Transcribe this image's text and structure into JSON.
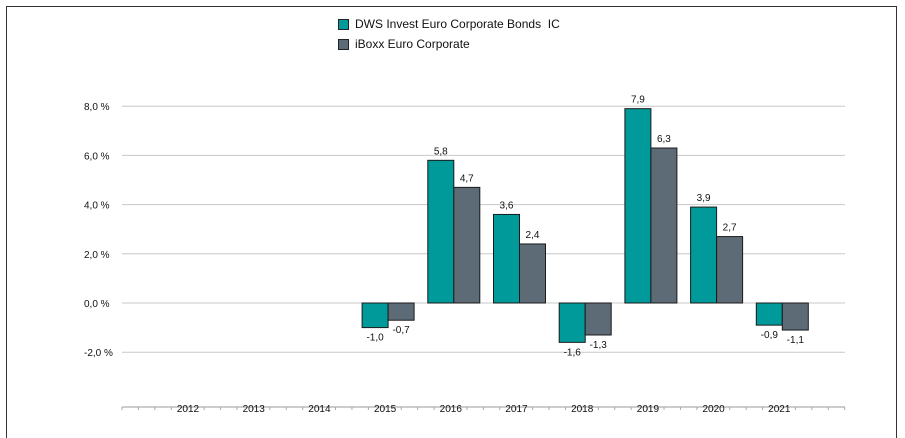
{
  "chart_data": {
    "type": "bar",
    "title": "",
    "xlabel": "",
    "ylabel": "",
    "categories": [
      "2012",
      "2013",
      "2014",
      "2015",
      "2016",
      "2017",
      "2018",
      "2019",
      "2020",
      "2021"
    ],
    "series": [
      {
        "name": "DWS Invest Euro Corporate Bonds  IC",
        "color": "#009a9a",
        "values": [
          null,
          null,
          null,
          -1.0,
          5.8,
          3.6,
          -1.6,
          7.9,
          3.9,
          -0.9
        ],
        "labels": [
          "",
          "",
          "",
          "-1,0",
          "5,8",
          "3,6",
          "-1,6",
          "7,9",
          "3,9",
          "-0,9"
        ]
      },
      {
        "name": "iBoxx Euro Corporate",
        "color": "#5d6b77",
        "values": [
          null,
          null,
          null,
          -0.7,
          4.7,
          2.4,
          -1.3,
          6.3,
          2.7,
          -1.1
        ],
        "labels": [
          "",
          "",
          "",
          "-0,7",
          "4,7",
          "2,4",
          "-1,3",
          "6,3",
          "2,7",
          "-1,1"
        ]
      }
    ],
    "yticks": [
      8,
      6,
      4,
      2,
      0,
      -2
    ],
    "ytick_labels": [
      "8,0 %",
      "6,0 %",
      "4,0 %",
      "2,0 %",
      "0,0 %",
      "-2,0 %"
    ],
    "ylim": [
      -2,
      8
    ],
    "grid": true,
    "legend_position": "top-center"
  }
}
